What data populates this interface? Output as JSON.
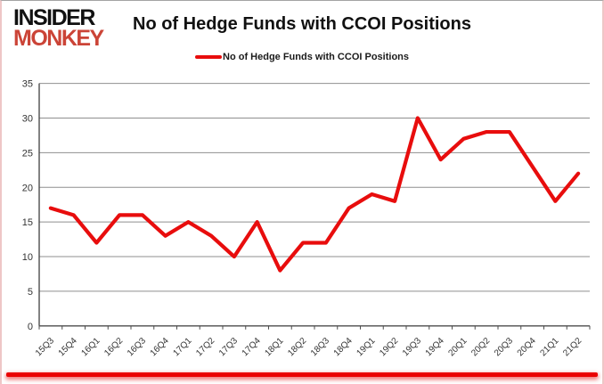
{
  "logo": {
    "line1": "INSIDER",
    "line2": "MONKEY"
  },
  "header": {
    "title": "No of Hedge Funds with CCOI Positions"
  },
  "legend": {
    "label": "No of Hedge Funds with CCOI Positions"
  },
  "colors": {
    "line": "#e80d0d",
    "logo_red": "#cb4437",
    "grid": "#8f8f8f",
    "axis": "#4d4d4d",
    "tick_text": "#333333",
    "bottom_bar": "#ea0000"
  },
  "chart_data": {
    "type": "line",
    "title": "No of Hedge Funds with CCOI Positions",
    "categories": [
      "15Q3",
      "15Q4",
      "16Q1",
      "16Q2",
      "16Q3",
      "16Q4",
      "17Q1",
      "17Q2",
      "17Q3",
      "17Q4",
      "18Q1",
      "18Q2",
      "18Q3",
      "18Q4",
      "19Q1",
      "19Q2",
      "19Q3",
      "19Q4",
      "20Q1",
      "20Q2",
      "20Q3",
      "20Q4",
      "21Q1",
      "21Q2"
    ],
    "series": [
      {
        "name": "No of Hedge Funds with CCOI Positions",
        "values": [
          17,
          16,
          12,
          16,
          16,
          13,
          15,
          13,
          10,
          15,
          8,
          12,
          12,
          17,
          19,
          18,
          30,
          24,
          27,
          28,
          28,
          23,
          18,
          22
        ]
      }
    ],
    "xlabel": "",
    "ylabel": "",
    "ylim": [
      0,
      35
    ],
    "ytick_step": 5,
    "grid": true,
    "legend_position": "top-center"
  }
}
